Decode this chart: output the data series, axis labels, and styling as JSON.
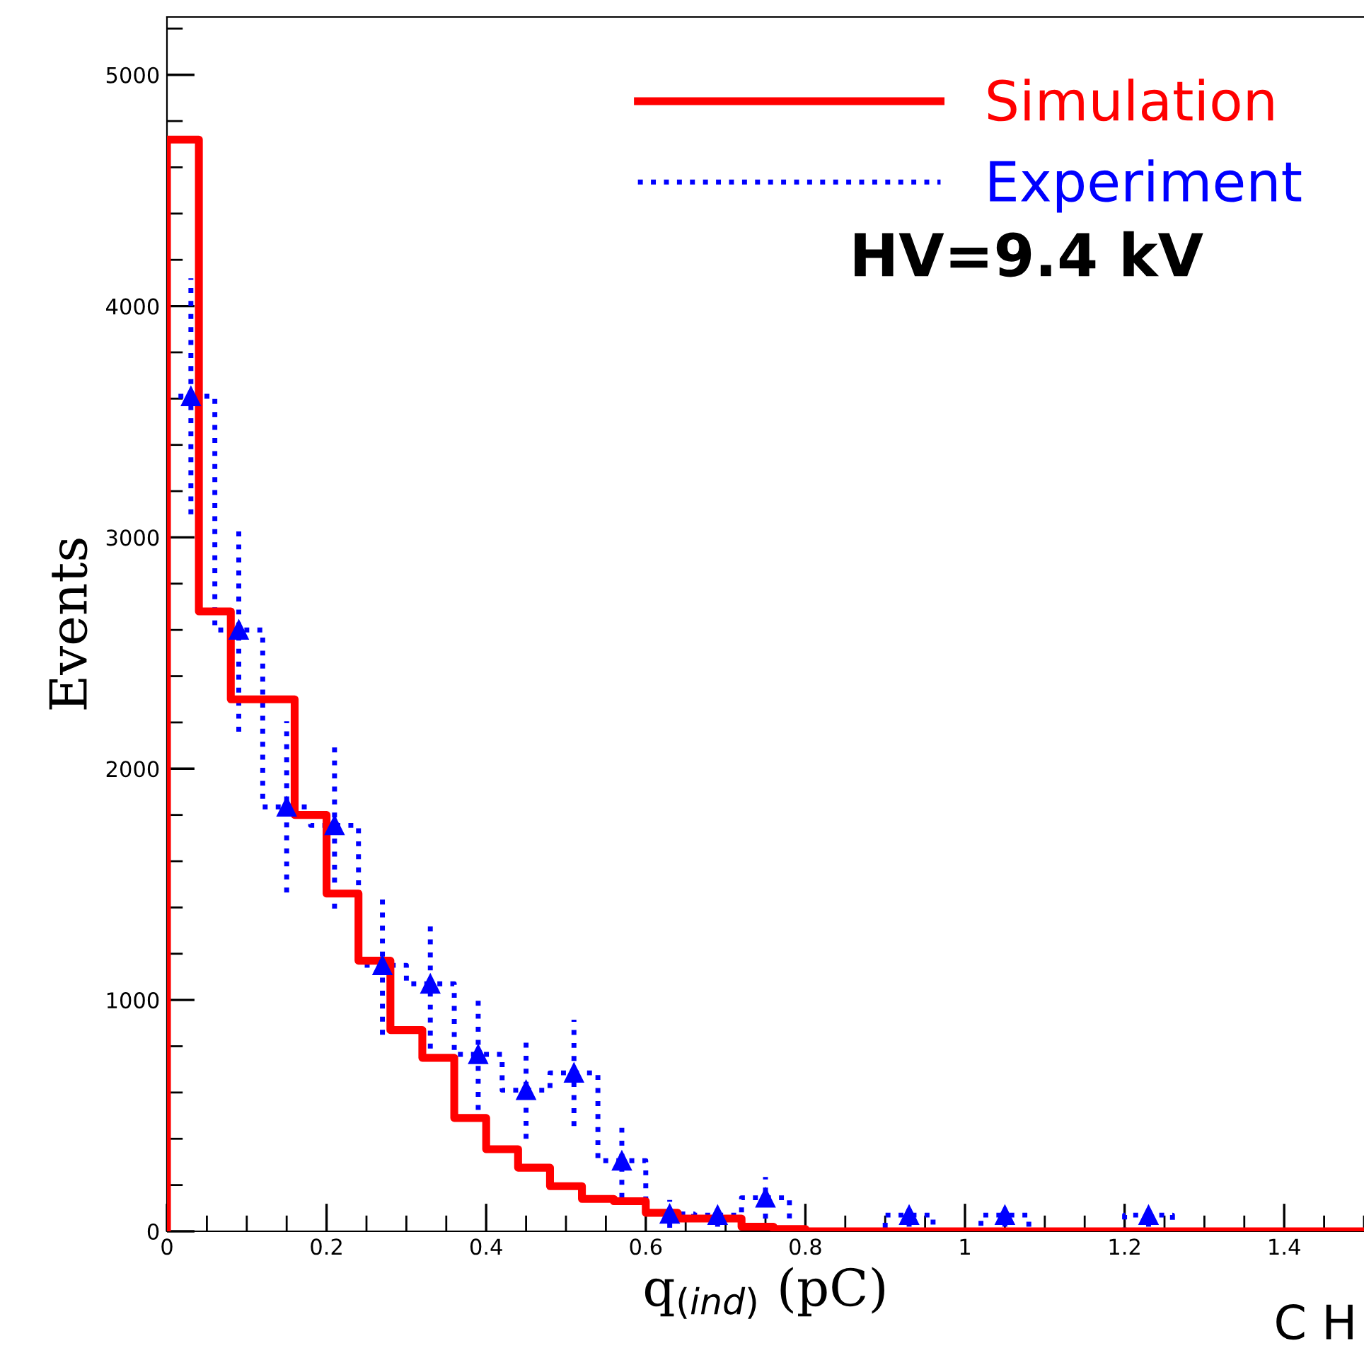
{
  "chart_data": {
    "type": "step",
    "xlabel": "q$_{(ind)}$ (pC)",
    "ylabel": "Events",
    "xlim": [
      0,
      1.5
    ],
    "ylim": [
      0,
      5250
    ],
    "xticks": [
      0,
      0.2,
      0.4,
      0.6,
      0.8,
      1,
      1.2,
      1.4
    ],
    "yticks": [
      0,
      1000,
      2000,
      3000,
      4000,
      5000
    ],
    "legend": "top right",
    "annotations": [
      "HV=9.4 kV",
      "C H"
    ],
    "series": [
      {
        "name": "Simulation",
        "color": "#ff0000",
        "line_style": "solid",
        "x": [
          0,
          0,
          0.04,
          0.08,
          0.12,
          0.16,
          0.2,
          0.24,
          0.28,
          0.32,
          0.36,
          0.4,
          0.44,
          0.48,
          0.52,
          0.56,
          0.6,
          0.64,
          0.68,
          0.72,
          0.76,
          0.8,
          1.5
        ],
        "values": [
          0,
          4720,
          2680,
          2300,
          2300,
          1800,
          1460,
          1170,
          870,
          750,
          490,
          355,
          275,
          195,
          140,
          130,
          80,
          55,
          55,
          20,
          10,
          0,
          0
        ]
      },
      {
        "name": "Experiment",
        "color": "#0000ff",
        "line_style": "dotted",
        "x": [
          0,
          0,
          0.06,
          0.12,
          0.18,
          0.24,
          0.3,
          0.36,
          0.42,
          0.48,
          0.54,
          0.6,
          0.66,
          0.72,
          0.78,
          0.84,
          0.9,
          0.96,
          1.02,
          1.08,
          1.14,
          1.2,
          1.26,
          1.5
        ],
        "values": [
          0,
          3610,
          2600,
          1835,
          1755,
          1150,
          1070,
          765,
          610,
          685,
          305,
          75,
          70,
          145,
          0,
          0,
          70,
          0,
          70,
          0,
          0,
          70,
          0,
          0
        ]
      },
      {
        "type": "scatter",
        "color": "#0000ff",
        "marker": "triangle",
        "line_style": "dotted",
        "x": [
          0.03,
          0.09,
          0.15,
          0.21,
          0.27,
          0.33,
          0.39,
          0.45,
          0.51,
          0.57,
          0.63,
          0.69,
          0.75,
          0.93,
          1.05,
          1.23
        ],
        "values": [
          3610,
          2600,
          1835,
          1755,
          1150,
          1070,
          765,
          610,
          685,
          305,
          75,
          70,
          145,
          70,
          70,
          70
        ],
        "errors": [
          510,
          440,
          370,
          360,
          300,
          280,
          240,
          210,
          230,
          160,
          60,
          50,
          90,
          50,
          50,
          50
        ]
      }
    ]
  }
}
